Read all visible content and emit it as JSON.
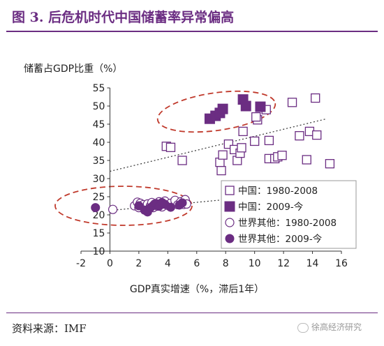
{
  "header": {
    "title": "图 3. 后危机时代中国储蓄率异常偏高"
  },
  "footer": {
    "source": "资料来源：IMF",
    "watermark": "徐高经济研究"
  },
  "colors": {
    "accent": "#6b2d82",
    "series": "#6b2d82",
    "ellipse": "#c0392b",
    "trend": "#333333"
  },
  "chart_data": {
    "type": "scatter",
    "title": "",
    "ylabel": "储蓄占GDP比重（%）",
    "xlabel": "GDP真实增速（%，滞后1年）",
    "xlim": [
      -2,
      16
    ],
    "ylim": [
      10,
      55
    ],
    "xticks": [
      "-2",
      "0",
      "2",
      "4",
      "6",
      "8",
      "10",
      "12",
      "14",
      "16"
    ],
    "yticks": [
      "10",
      "15",
      "20",
      "25",
      "30",
      "35",
      "40",
      "45",
      "50",
      "55"
    ],
    "grid": false,
    "legend_position": "bottom-right",
    "series": [
      {
        "name": "中国：1980-2008",
        "marker": "open-square",
        "points": [
          [
            3.9,
            38.9
          ],
          [
            4.2,
            38.6
          ],
          [
            5.0,
            35.0
          ],
          [
            7.7,
            32.2
          ],
          [
            7.6,
            34.5
          ],
          [
            7.8,
            36.5
          ],
          [
            8.2,
            39.5
          ],
          [
            8.6,
            38.0
          ],
          [
            8.8,
            35.0
          ],
          [
            9.0,
            37.0
          ],
          [
            9.1,
            38.5
          ],
          [
            9.2,
            43.0
          ],
          [
            10.0,
            40.3
          ],
          [
            10.2,
            46.2
          ],
          [
            10.1,
            47.0
          ],
          [
            10.8,
            49.0
          ],
          [
            11.0,
            40.5
          ],
          [
            11.0,
            35.5
          ],
          [
            11.4,
            35.5
          ],
          [
            11.6,
            36.0
          ],
          [
            11.9,
            36.4
          ],
          [
            12.6,
            51.0
          ],
          [
            13.1,
            41.8
          ],
          [
            13.6,
            35.2
          ],
          [
            13.8,
            43.0
          ],
          [
            14.2,
            52.2
          ],
          [
            14.3,
            42.0
          ],
          [
            15.2,
            34.1
          ]
        ]
      },
      {
        "name": "中国：2009-今",
        "marker": "filled-square",
        "points": [
          [
            6.9,
            46.5
          ],
          [
            7.3,
            47.3
          ],
          [
            7.6,
            48.1
          ],
          [
            7.8,
            49.2
          ],
          [
            9.2,
            51.8
          ],
          [
            9.4,
            50.0
          ],
          [
            10.4,
            49.8
          ]
        ]
      },
      {
        "name": "世界其他：1980-2008",
        "marker": "open-circle",
        "points": [
          [
            0.2,
            21.5
          ],
          [
            1.7,
            22.5
          ],
          [
            1.9,
            23.5
          ],
          [
            2.0,
            22.0
          ],
          [
            2.1,
            23.2
          ],
          [
            2.3,
            22.8
          ],
          [
            2.5,
            21.6
          ],
          [
            2.6,
            23.0
          ],
          [
            2.8,
            22.5
          ],
          [
            2.9,
            23.4
          ],
          [
            3.0,
            22.0
          ],
          [
            3.1,
            23.0
          ],
          [
            3.3,
            22.4
          ],
          [
            3.4,
            23.6
          ],
          [
            3.5,
            22.8
          ],
          [
            3.6,
            22.2
          ],
          [
            3.7,
            23.1
          ],
          [
            3.8,
            23.8
          ],
          [
            4.0,
            22.6
          ],
          [
            4.2,
            23.2
          ],
          [
            4.5,
            24.0
          ],
          [
            4.7,
            22.8
          ],
          [
            4.9,
            23.6
          ],
          [
            5.1,
            22.9
          ],
          [
            5.2,
            24.2
          ],
          [
            5.3,
            23.0
          ]
        ]
      },
      {
        "name": "世界其他：2009-今",
        "marker": "filled-circle",
        "points": [
          [
            -1.0,
            22.0
          ],
          [
            2.0,
            22.5
          ],
          [
            2.4,
            21.3
          ],
          [
            2.6,
            20.8
          ],
          [
            2.8,
            22.0
          ],
          [
            3.0,
            22.6
          ],
          [
            3.2,
            23.1
          ],
          [
            3.4,
            22.4
          ],
          [
            3.6,
            23.4
          ],
          [
            3.8,
            22.9
          ],
          [
            4.2,
            22.1
          ],
          [
            4.8,
            22.7
          ],
          [
            5.0,
            23.3
          ]
        ]
      }
    ],
    "trendlines": [
      {
        "from": [
          0,
          32.0
        ],
        "to": [
          15,
          46.5
        ]
      },
      {
        "from": [
          0,
          21.2
        ],
        "to": [
          8.5,
          24.4
        ]
      }
    ]
  }
}
